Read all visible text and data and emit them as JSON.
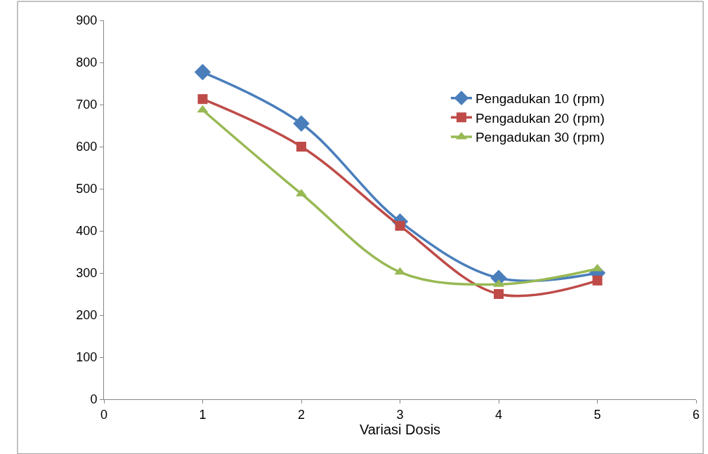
{
  "chart_data": {
    "type": "line",
    "xlabel": "Variasi Dosis",
    "x": [
      1,
      2,
      3,
      4,
      5
    ],
    "series": [
      {
        "name": "Pengadukan 10 (rpm)",
        "color": "#4a7ebb",
        "marker": "diamond",
        "values": [
          777,
          655,
          422,
          288,
          300
        ]
      },
      {
        "name": "Pengadukan 20 (rpm)",
        "color": "#be4b48",
        "marker": "square",
        "values": [
          713,
          600,
          412,
          250,
          282
        ]
      },
      {
        "name": "Pengadukan 30 (rpm)",
        "color": "#98b954",
        "marker": "triangle",
        "values": [
          687,
          488,
          302,
          273,
          310
        ]
      }
    ],
    "xlim": [
      0,
      6
    ],
    "xticks": [
      0,
      1,
      2,
      3,
      4,
      5,
      6
    ],
    "ylim": [
      0,
      900
    ],
    "yticks": [
      0,
      100,
      200,
      300,
      400,
      500,
      600,
      700,
      800,
      900
    ],
    "legend": "right",
    "line_style": "solid"
  }
}
